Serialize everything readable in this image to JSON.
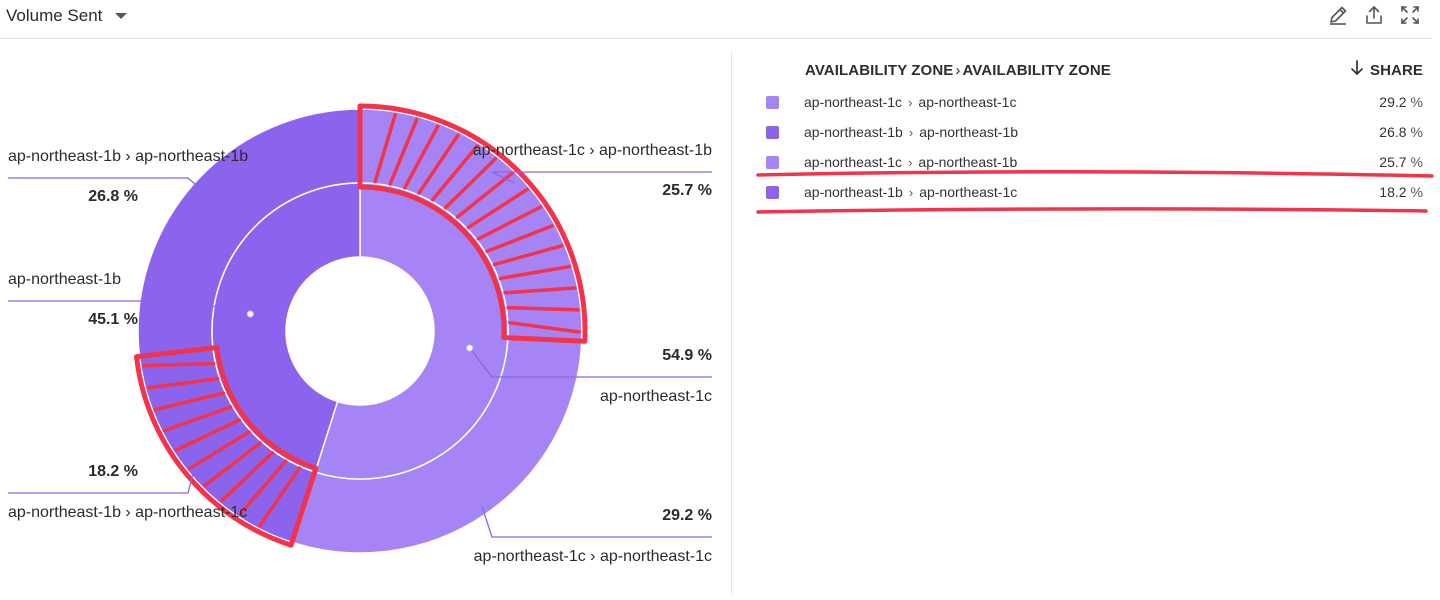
{
  "header": {
    "title": "Volume Sent",
    "icons": [
      "chevron-down-icon",
      "pencil-icon",
      "export-icon",
      "expand-icon"
    ]
  },
  "legend": {
    "column1": "AVAILABILITY ZONE",
    "separator": "›",
    "column2": "AVAILABILITY ZONE",
    "share_label": "SHARE",
    "sort_icon": "arrow-down-icon",
    "rows": [
      {
        "from": "ap-northeast-1c",
        "to": "ap-northeast-1c",
        "value": "29.2",
        "unit": "%",
        "color": "#a684f5"
      },
      {
        "from": "ap-northeast-1b",
        "to": "ap-northeast-1b",
        "value": "26.8",
        "unit": "%",
        "color": "#8c63ec"
      },
      {
        "from": "ap-northeast-1c",
        "to": "ap-northeast-1b",
        "value": "25.7",
        "unit": "%",
        "color": "#a684f5"
      },
      {
        "from": "ap-northeast-1b",
        "to": "ap-northeast-1c",
        "value": "18.2",
        "unit": "%",
        "color": "#8c63ec"
      }
    ]
  },
  "chart_data": {
    "type": "pie",
    "title": "Volume Sent",
    "inner_ring": [
      {
        "label": "ap-northeast-1c",
        "value": 54.9,
        "display": "54.9 %",
        "color": "#a684f5"
      },
      {
        "label": "ap-northeast-1b",
        "value": 45.1,
        "display": "45.1 %",
        "color": "#8c63ec"
      }
    ],
    "outer_ring": [
      {
        "label": "ap-northeast-1c › ap-northeast-1b",
        "value": 25.7,
        "display": "25.7 %",
        "color": "#a684f5"
      },
      {
        "label": "ap-northeast-1c › ap-northeast-1c",
        "value": 29.2,
        "display": "29.2 %",
        "color": "#a684f5"
      },
      {
        "label": "ap-northeast-1b › ap-northeast-1c",
        "value": 18.2,
        "display": "18.2 %",
        "color": "#8c63ec"
      },
      {
        "label": "ap-northeast-1b › ap-northeast-1b",
        "value": 26.8,
        "display": "26.8 %",
        "color": "#8c63ec"
      }
    ],
    "highlighted": [
      "ap-northeast-1c › ap-northeast-1b",
      "ap-northeast-1b › ap-northeast-1c"
    ],
    "annotation_color": "#f2334a"
  }
}
